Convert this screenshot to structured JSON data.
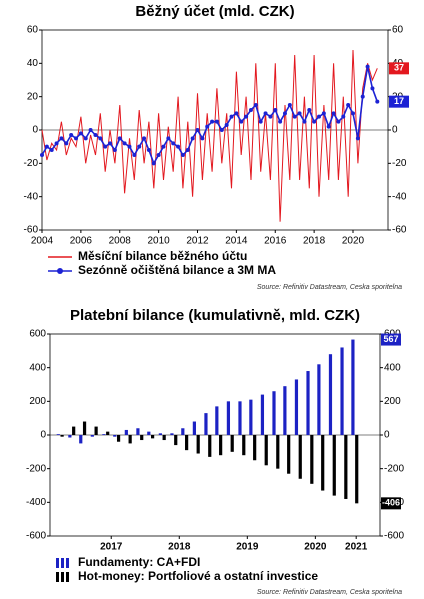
{
  "chart_data": [
    {
      "type": "line",
      "title": "Běžný účet (mld. CZK)",
      "x": [
        2004,
        2004.25,
        2004.5,
        2004.75,
        2005,
        2005.25,
        2005.5,
        2005.75,
        2006,
        2006.25,
        2006.5,
        2006.75,
        2007,
        2007.25,
        2007.5,
        2007.75,
        2008,
        2008.25,
        2008.5,
        2008.75,
        2009,
        2009.25,
        2009.5,
        2009.75,
        2010,
        2010.25,
        2010.5,
        2010.75,
        2011,
        2011.25,
        2011.5,
        2011.75,
        2012,
        2012.25,
        2012.5,
        2012.75,
        2013,
        2013.25,
        2013.5,
        2013.75,
        2014,
        2014.25,
        2014.5,
        2014.75,
        2015,
        2015.25,
        2015.5,
        2015.75,
        2016,
        2016.25,
        2016.5,
        2016.75,
        2017,
        2017.25,
        2017.5,
        2017.75,
        2018,
        2018.25,
        2018.5,
        2018.75,
        2019,
        2019.25,
        2019.5,
        2019.75,
        2020,
        2020.25,
        2020.5,
        2020.75,
        2021,
        2021.25
      ],
      "series": [
        {
          "name": "Měsíční bilance běžného účtu",
          "color": "#e3181f",
          "values": [
            0,
            -18,
            -8,
            -12,
            5,
            -15,
            -5,
            -10,
            8,
            -20,
            -3,
            -15,
            10,
            -25,
            0,
            -20,
            15,
            -38,
            -5,
            -30,
            12,
            -20,
            5,
            -35,
            10,
            -30,
            2,
            -25,
            20,
            -35,
            5,
            -40,
            22,
            -30,
            10,
            -25,
            25,
            -20,
            10,
            -35,
            35,
            -15,
            20,
            -30,
            40,
            -25,
            10,
            -30,
            40,
            -55,
            15,
            -30,
            45,
            -30,
            20,
            -35,
            45,
            -40,
            15,
            -30,
            40,
            -30,
            20,
            -40,
            48,
            -20,
            25,
            40,
            30,
            37
          ]
        },
        {
          "name": "Sezónně očištěná bilance a 3M MA",
          "color": "#1c22d4",
          "marker": "circle",
          "values": [
            -15,
            -10,
            -12,
            -8,
            -5,
            -8,
            -3,
            -5,
            -2,
            -5,
            0,
            -3,
            -5,
            -10,
            -8,
            -12,
            -5,
            -8,
            -10,
            -15,
            -10,
            -5,
            -12,
            -20,
            -15,
            -10,
            -5,
            -8,
            -10,
            -15,
            -12,
            -5,
            0,
            -5,
            2,
            5,
            5,
            0,
            3,
            8,
            10,
            5,
            8,
            12,
            15,
            5,
            10,
            8,
            12,
            5,
            10,
            15,
            8,
            10,
            5,
            12,
            5,
            8,
            10,
            2,
            10,
            5,
            8,
            15,
            10,
            -5,
            20,
            38,
            25,
            17
          ]
        }
      ],
      "xlim": [
        2004,
        2021.8
      ],
      "xticks": [
        2004,
        2006,
        2008,
        2010,
        2012,
        2014,
        2016,
        2018,
        2020
      ],
      "ylim": [
        -60,
        60
      ],
      "yticks": [
        -60,
        -40,
        -20,
        0,
        20,
        40,
        60
      ],
      "y2lim": [
        -60,
        60
      ],
      "y2ticks": [
        -60,
        -40,
        -20,
        0,
        20,
        40,
        60
      ],
      "legend": "bottom",
      "source": "Source: Refinitiv Datastream, Ceska sporitelna"
    },
    {
      "type": "bar",
      "title": "Platební bilance (kumulativně, mld. CZK)",
      "x": [
        2016.75,
        2016.92,
        2017.08,
        2017.25,
        2017.42,
        2017.58,
        2017.75,
        2017.92,
        2018.08,
        2018.25,
        2018.42,
        2018.58,
        2018.75,
        2018.92,
        2019.08,
        2019.25,
        2019.42,
        2019.58,
        2019.75,
        2019.92,
        2020.08,
        2020.25,
        2020.42,
        2020.58,
        2020.75,
        2020.92,
        2021.08
      ],
      "series": [
        {
          "name": "Fundamenty: CA+FDI",
          "color": "#1c22c4",
          "values": [
            5,
            -15,
            -50,
            -10,
            5,
            -10,
            30,
            40,
            20,
            10,
            10,
            40,
            80,
            130,
            170,
            200,
            200,
            210,
            240,
            260,
            290,
            330,
            380,
            420,
            480,
            520,
            567
          ]
        },
        {
          "name": "Hot-money: Portfoliové a ostatní investice",
          "color": "#000000",
          "values": [
            -10,
            50,
            80,
            50,
            20,
            -40,
            -50,
            -30,
            -20,
            -30,
            -60,
            -90,
            -110,
            -130,
            -120,
            -100,
            -120,
            -150,
            -180,
            -200,
            -230,
            -260,
            -290,
            -330,
            -360,
            -380,
            -406
          ]
        }
      ],
      "xlim": [
        2016.6,
        2021.45
      ],
      "xticks": [
        {
          "value": 2017.5,
          "label": "2017"
        },
        {
          "value": 2018.5,
          "label": "2018"
        },
        {
          "value": 2019.5,
          "label": "2019"
        },
        {
          "value": 2020.5,
          "label": "2020"
        },
        {
          "value": 2021.1,
          "label": "2021"
        }
      ],
      "ylim": [
        -600,
        600
      ],
      "yticks": [
        -600,
        -400,
        -200,
        0,
        200,
        400,
        600
      ],
      "y2lim": [
        -600,
        600
      ],
      "y2ticks": [
        -600,
        -400,
        -200,
        0,
        200,
        400,
        600
      ],
      "legend": "bottom",
      "source": "Source: Refinitiv Datastream, Ceska sporitelna"
    }
  ]
}
